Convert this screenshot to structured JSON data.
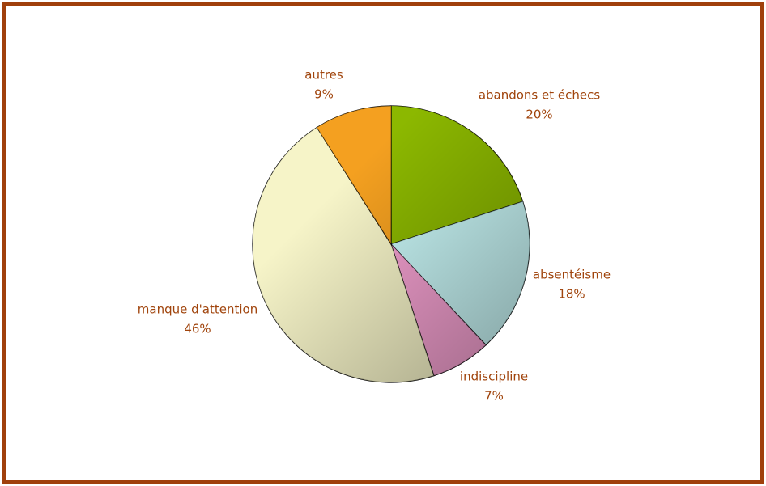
{
  "chart_data": {
    "type": "pie",
    "categories": [
      "abandons et échecs",
      "absentéisme",
      "indiscipline",
      "manque d'attention",
      "autres"
    ],
    "values": [
      20,
      18,
      7,
      46,
      9
    ],
    "value_labels": [
      "20%",
      "18%",
      "7%",
      "46%",
      "9%"
    ],
    "colors": [
      "#8cb800",
      "#c8f6f6",
      "#f4a0d0",
      "#f6f4c8",
      "#f4a020"
    ],
    "label_color": "#a0440c",
    "border_color": "#a0400c"
  }
}
